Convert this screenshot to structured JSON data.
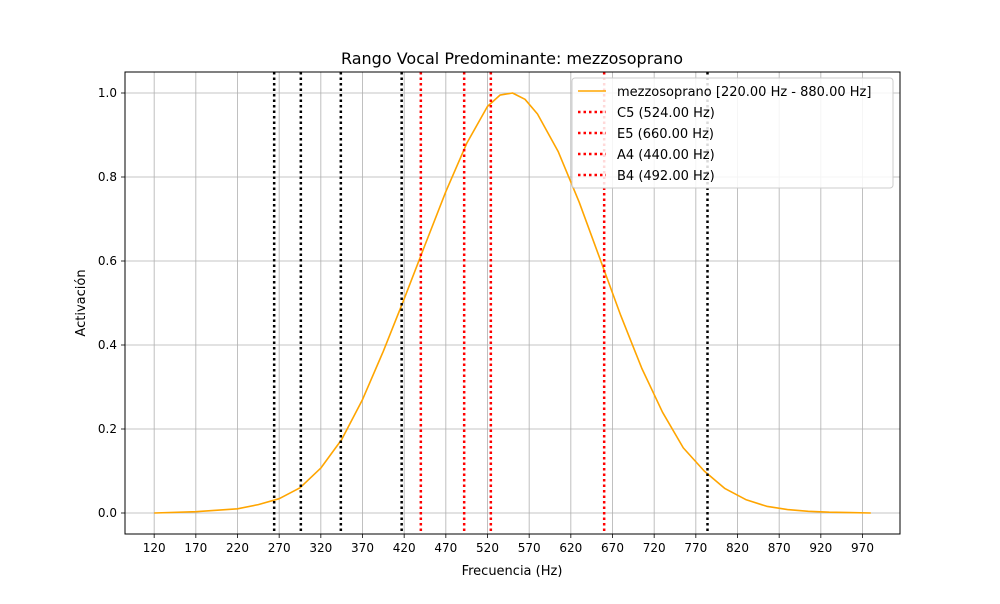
{
  "chart_data": {
    "type": "line",
    "title": "Rango Vocal Predominante: mezzosoprano",
    "xlabel": "Frecuencia (Hz)",
    "ylabel": "Activación",
    "xlim": [
      85,
      1015
    ],
    "ylim": [
      -0.05,
      1.05
    ],
    "xticks": [
      120,
      170,
      220,
      270,
      320,
      370,
      420,
      470,
      520,
      570,
      620,
      670,
      720,
      770,
      820,
      870,
      920,
      970
    ],
    "yticks": [
      0.0,
      0.2,
      0.4,
      0.6,
      0.8,
      1.0
    ],
    "ytick_labels": [
      "0.0",
      "0.2",
      "0.4",
      "0.6",
      "0.8",
      "1.0"
    ],
    "grid": true,
    "legend_position": "top-right",
    "series": [
      {
        "name": "mezzosoprano [220.00 Hz - 880.00 Hz]",
        "color": "#ffa500",
        "style": "solid",
        "x": [
          120,
          170,
          220,
          245,
          270,
          295,
          320,
          345,
          370,
          395,
          420,
          445,
          470,
          495,
          520,
          535,
          550,
          565,
          580,
          605,
          630,
          655,
          680,
          705,
          730,
          755,
          780,
          805,
          830,
          855,
          880,
          905,
          930,
          955,
          980
        ],
        "y": [
          0.0,
          0.003,
          0.01,
          0.02,
          0.034,
          0.06,
          0.107,
          0.175,
          0.27,
          0.385,
          0.51,
          0.638,
          0.765,
          0.88,
          0.968,
          0.995,
          1.0,
          0.985,
          0.95,
          0.86,
          0.74,
          0.605,
          0.47,
          0.345,
          0.24,
          0.155,
          0.1,
          0.058,
          0.032,
          0.016,
          0.008,
          0.004,
          0.002,
          0.001,
          0.0
        ]
      }
    ],
    "vlines": [
      {
        "x": 524,
        "color": "#ff0000",
        "label": "C5 (524.00 Hz)"
      },
      {
        "x": 660,
        "color": "#ff0000",
        "label": "E5 (660.00 Hz)"
      },
      {
        "x": 440,
        "color": "#ff0000",
        "label": "A4 (440.00 Hz)"
      },
      {
        "x": 492,
        "color": "#ff0000",
        "label": "B4 (492.00 Hz)"
      },
      {
        "x": 264,
        "color": "#000000",
        "label": ""
      },
      {
        "x": 296,
        "color": "#000000",
        "label": ""
      },
      {
        "x": 344,
        "color": "#000000",
        "label": ""
      },
      {
        "x": 417,
        "color": "#000000",
        "label": ""
      },
      {
        "x": 784,
        "color": "#000000",
        "label": ""
      }
    ]
  }
}
